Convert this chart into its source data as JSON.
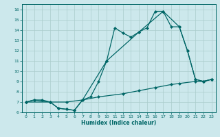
{
  "title": "",
  "xlabel": "Humidex (Indice chaleur)",
  "background_color": "#cce8ec",
  "grid_color": "#aacccc",
  "line_color": "#006666",
  "xlim": [
    -0.5,
    23.5
  ],
  "ylim": [
    6,
    16.5
  ],
  "xticks": [
    0,
    1,
    2,
    3,
    4,
    5,
    6,
    7,
    8,
    9,
    10,
    11,
    12,
    13,
    14,
    15,
    16,
    17,
    18,
    19,
    20,
    21,
    22,
    23
  ],
  "yticks": [
    6,
    7,
    8,
    9,
    10,
    11,
    12,
    13,
    14,
    15,
    16
  ],
  "line1_x": [
    0,
    1,
    2,
    3,
    4,
    5,
    6,
    7,
    8,
    9,
    10,
    11,
    12,
    13,
    14,
    15,
    16,
    17,
    18,
    19,
    20,
    21,
    22,
    23
  ],
  "line1_y": [
    7.0,
    7.2,
    7.2,
    7.0,
    6.4,
    6.3,
    6.2,
    7.2,
    7.5,
    9.0,
    11.0,
    14.2,
    13.7,
    13.3,
    13.8,
    14.2,
    15.8,
    15.8,
    14.3,
    14.3,
    12.0,
    9.2,
    9.0,
    9.2
  ],
  "line2_x": [
    0,
    1,
    3,
    4,
    5,
    6,
    7,
    10,
    14,
    17,
    19,
    20,
    21,
    22,
    23
  ],
  "line2_y": [
    7.0,
    7.2,
    7.0,
    6.4,
    6.3,
    6.2,
    7.2,
    11.0,
    13.8,
    15.8,
    14.3,
    12.0,
    9.2,
    9.0,
    9.2
  ],
  "line3_x": [
    0,
    3,
    5,
    7,
    9,
    12,
    14,
    16,
    18,
    19,
    21,
    22,
    23
  ],
  "line3_y": [
    7.0,
    7.0,
    7.0,
    7.2,
    7.5,
    7.8,
    8.1,
    8.4,
    8.7,
    8.8,
    9.0,
    9.0,
    9.2
  ]
}
